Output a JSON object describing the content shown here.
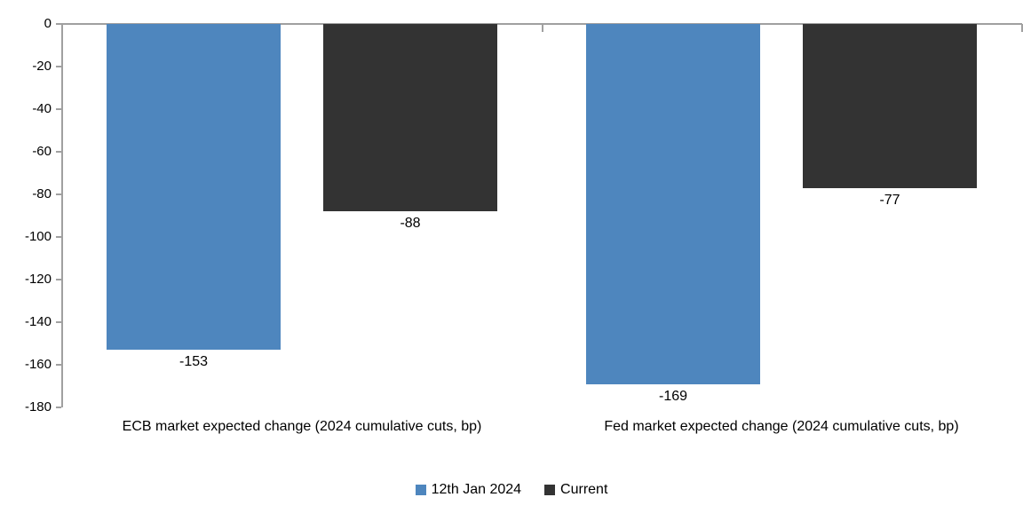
{
  "chart_data": {
    "type": "bar",
    "title": "",
    "xlabel": "",
    "ylabel": "",
    "categories": [
      "ECB market expected change (2024 cumulative cuts, bp)",
      "Fed market expected change (2024 cumulative cuts, bp)"
    ],
    "series": [
      {
        "name": "12th Jan 2024",
        "color": "#4E86BE",
        "values": [
          -153,
          -169
        ]
      },
      {
        "name": "Current",
        "color": "#333333",
        "values": [
          -88,
          -77
        ]
      }
    ],
    "data_labels": [
      [
        "-153",
        "-169"
      ],
      [
        "-88",
        "-77"
      ]
    ],
    "ylim": [
      -180,
      0
    ],
    "yticks": [
      0,
      -20,
      -40,
      -60,
      -80,
      -100,
      -120,
      -140,
      -160,
      -180
    ],
    "grid": false,
    "legend_position": "bottom",
    "axis_color": "#A0A0A0",
    "text_color": "#000000"
  }
}
